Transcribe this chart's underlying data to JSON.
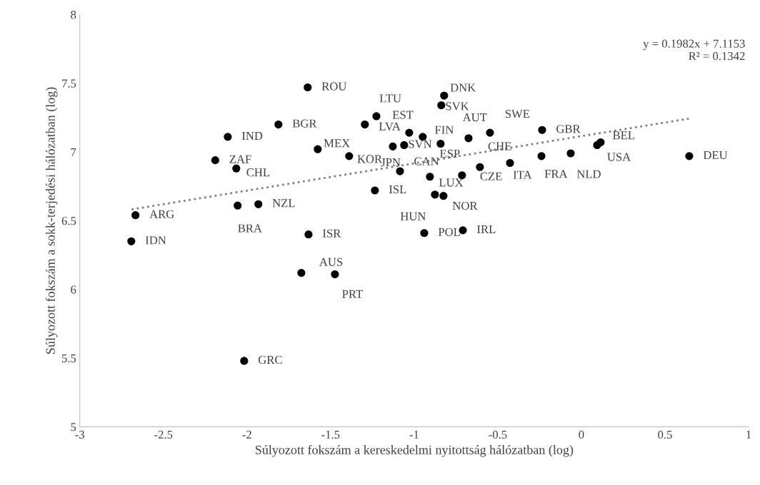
{
  "chart_data": {
    "type": "scatter",
    "xlabel": "Súlyozott fokszám a kereskedelmi nyitottság hálózatban (log)",
    "ylabel": "Súlyozott fokszám a sokk-terjedési hálózatban (log)",
    "xlim": [
      -3,
      1
    ],
    "xticks": [
      -3,
      -2.5,
      -2,
      -1.5,
      -1,
      -0.5,
      0,
      0.5,
      1
    ],
    "ylim": [
      5,
      8
    ],
    "yticks": [
      5,
      5.5,
      6,
      6.5,
      7,
      7.5,
      8
    ],
    "grid": false,
    "legend": false,
    "marker": "circle",
    "series": [
      {
        "color": "#000000",
        "x": [
          -1.637,
          -1.812,
          -2.115,
          -2.19,
          -2.064,
          -1.577,
          -1.389,
          -1.226,
          -1.295,
          -2.667,
          -2.692,
          -2.056,
          -1.932,
          -1.632,
          -1.675,
          -1.474,
          -2.017,
          -1.235,
          -0.821,
          -0.838,
          -1.03,
          -0.949,
          -1.128,
          -1.06,
          -0.842,
          -0.675,
          -0.547,
          -0.235,
          0.115,
          0.094,
          0.645,
          -0.064,
          -0.239,
          -0.427,
          -0.607,
          -0.714,
          -1.085,
          -0.906,
          -0.876,
          -0.825,
          -0.94,
          -0.709
        ],
        "values": [
          7.47,
          7.2,
          7.11,
          6.94,
          6.88,
          7.02,
          6.97,
          7.26,
          7.2,
          6.54,
          6.35,
          6.61,
          6.62,
          6.4,
          6.12,
          6.11,
          5.48,
          6.72,
          7.41,
          7.34,
          7.14,
          7.11,
          7.04,
          7.05,
          7.06,
          7.1,
          7.14,
          7.16,
          7.07,
          7.05,
          6.97,
          6.99,
          6.97,
          6.92,
          6.89,
          6.83,
          6.86,
          6.82,
          6.69,
          6.68,
          6.41,
          6.43
        ]
      },
      {
        "type": "line",
        "color": "#808080",
        "line_style": "dotted",
        "marker": "none",
        "x": [
          -2.69,
          0.645
        ],
        "values": [
          6.582,
          7.243
        ]
      }
    ],
    "annotations": [
      {
        "text": "ROU",
        "x": -1.637,
        "y": 7.47
      },
      {
        "text": "BGR",
        "x": -1.812,
        "y": 7.2
      },
      {
        "text": "IND",
        "x": -2.115,
        "y": 7.11
      },
      {
        "text": "ZAF",
        "x": -2.19,
        "y": 6.94
      },
      {
        "text": "CHL",
        "x": -2.064,
        "y": 6.88
      },
      {
        "text": "MEX",
        "x": -1.577,
        "y": 7.02
      },
      {
        "text": "KOR",
        "x": -1.389,
        "y": 6.97
      },
      {
        "text": "LTU",
        "x": -1.226,
        "y": 7.26
      },
      {
        "text": "LVA",
        "x": -1.295,
        "y": 7.2
      },
      {
        "text": "ARG",
        "x": -2.667,
        "y": 6.54
      },
      {
        "text": "IDN",
        "x": -2.692,
        "y": 6.35
      },
      {
        "text": "BRA",
        "x": -2.056,
        "y": 6.61
      },
      {
        "text": "NZL",
        "x": -1.932,
        "y": 6.62
      },
      {
        "text": "ISR",
        "x": -1.632,
        "y": 6.4
      },
      {
        "text": "AUS",
        "x": -1.675,
        "y": 6.12
      },
      {
        "text": "PRT",
        "x": -1.474,
        "y": 6.11
      },
      {
        "text": "GRC",
        "x": -2.017,
        "y": 5.48
      },
      {
        "text": "ISL",
        "x": -1.235,
        "y": 6.72
      },
      {
        "text": "DNK",
        "x": -0.821,
        "y": 7.41
      },
      {
        "text": "SVK",
        "x": -0.838,
        "y": 7.34
      },
      {
        "text": "EST",
        "x": -1.03,
        "y": 7.14
      },
      {
        "text": "FIN",
        "x": -0.949,
        "y": 7.11
      },
      {
        "text": "JPN",
        "x": -1.128,
        "y": 7.04
      },
      {
        "text": "SVN",
        "x": -1.06,
        "y": 7.05
      },
      {
        "text": "ESP",
        "x": -0.842,
        "y": 7.06
      },
      {
        "text": "AUT",
        "x": -0.675,
        "y": 7.1
      },
      {
        "text": "SWE",
        "x": -0.547,
        "y": 7.14
      },
      {
        "text": "GBR",
        "x": -0.235,
        "y": 7.16
      },
      {
        "text": "BEL",
        "x": 0.115,
        "y": 7.07
      },
      {
        "text": "USA",
        "x": 0.094,
        "y": 7.05
      },
      {
        "text": "DEU",
        "x": 0.645,
        "y": 6.97
      },
      {
        "text": "NLD",
        "x": -0.064,
        "y": 6.99
      },
      {
        "text": "FRA",
        "x": -0.239,
        "y": 6.97
      },
      {
        "text": "ITA",
        "x": -0.427,
        "y": 6.92
      },
      {
        "text": "CHE",
        "x": -0.607,
        "y": 6.89
      },
      {
        "text": "CZE",
        "x": -0.714,
        "y": 6.83
      },
      {
        "text": "CAN",
        "x": -1.085,
        "y": 6.86
      },
      {
        "text": "LUX",
        "x": -0.906,
        "y": 6.82
      },
      {
        "text": "HUN",
        "x": -0.876,
        "y": 6.69
      },
      {
        "text": "NOR",
        "x": -0.825,
        "y": 6.68
      },
      {
        "text": "POL",
        "x": -0.94,
        "y": 6.41
      },
      {
        "text": "IRL",
        "x": -0.709,
        "y": 6.43
      },
      "y = 0.1982x + 7.1153\nR² = 0.1342"
    ]
  }
}
